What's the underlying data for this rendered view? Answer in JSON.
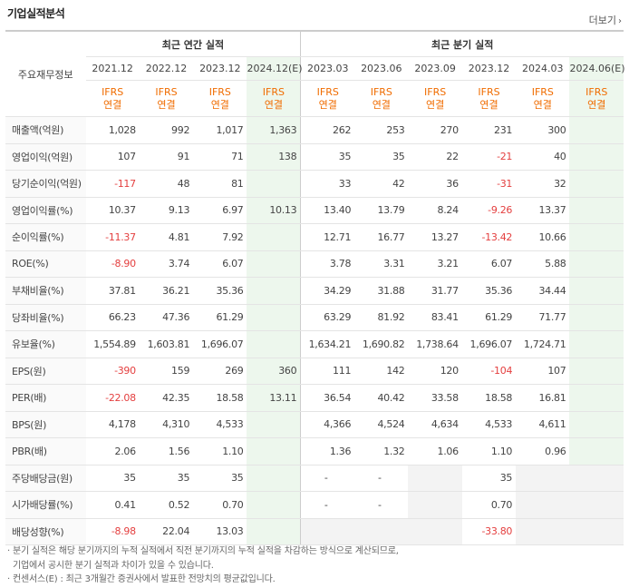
{
  "header": {
    "title": "기업실적분석",
    "more": "더보기"
  },
  "table": {
    "row_header": "주요재무정보",
    "group_annual": "최근 연간 실적",
    "group_quarter": "최근 분기 실적",
    "periods": [
      "2021.12",
      "2022.12",
      "2023.12",
      "2024.12(E)",
      "2023.03",
      "2023.06",
      "2023.09",
      "2023.12",
      "2024.03",
      "2024.06(E)"
    ],
    "basis_line1": "IFRS",
    "basis_line2": "연결",
    "rows": [
      {
        "label": "매출액(억원)",
        "values": [
          "1,028",
          "992",
          "1,017",
          "1,363",
          "262",
          "253",
          "270",
          "231",
          "300",
          ""
        ]
      },
      {
        "label": "영업이익(억원)",
        "values": [
          "107",
          "91",
          "71",
          "138",
          "35",
          "35",
          "22",
          "-21",
          "40",
          ""
        ]
      },
      {
        "label": "당기순이익(억원)",
        "values": [
          "-117",
          "48",
          "81",
          "",
          "33",
          "42",
          "36",
          "-31",
          "32",
          ""
        ]
      },
      {
        "label": "영업이익률(%)",
        "values": [
          "10.37",
          "9.13",
          "6.97",
          "10.13",
          "13.40",
          "13.79",
          "8.24",
          "-9.26",
          "13.37",
          ""
        ]
      },
      {
        "label": "순이익률(%)",
        "values": [
          "-11.37",
          "4.81",
          "7.92",
          "",
          "12.71",
          "16.77",
          "13.27",
          "-13.42",
          "10.66",
          ""
        ]
      },
      {
        "label": "ROE(%)",
        "values": [
          "-8.90",
          "3.74",
          "6.07",
          "",
          "3.78",
          "3.31",
          "3.21",
          "6.07",
          "5.88",
          ""
        ]
      },
      {
        "label": "부채비율(%)",
        "values": [
          "37.81",
          "36.21",
          "35.36",
          "",
          "34.29",
          "31.88",
          "31.77",
          "35.36",
          "34.44",
          ""
        ]
      },
      {
        "label": "당좌비율(%)",
        "values": [
          "66.23",
          "47.36",
          "61.29",
          "",
          "63.29",
          "81.92",
          "83.41",
          "61.29",
          "71.77",
          ""
        ]
      },
      {
        "label": "유보율(%)",
        "values": [
          "1,554.89",
          "1,603.81",
          "1,696.07",
          "",
          "1,634.21",
          "1,690.82",
          "1,738.64",
          "1,696.07",
          "1,724.71",
          ""
        ]
      },
      {
        "label": "EPS(원)",
        "values": [
          "-390",
          "159",
          "269",
          "360",
          "111",
          "142",
          "120",
          "-104",
          "107",
          ""
        ]
      },
      {
        "label": "PER(배)",
        "values": [
          "-22.08",
          "42.35",
          "18.58",
          "13.11",
          "36.54",
          "40.42",
          "33.58",
          "18.58",
          "16.81",
          ""
        ]
      },
      {
        "label": "BPS(원)",
        "values": [
          "4,178",
          "4,310",
          "4,533",
          "",
          "4,366",
          "4,524",
          "4,634",
          "4,533",
          "4,611",
          ""
        ]
      },
      {
        "label": "PBR(배)",
        "values": [
          "2.06",
          "1.56",
          "1.10",
          "",
          "1.36",
          "1.32",
          "1.06",
          "1.10",
          "0.96",
          ""
        ]
      },
      {
        "label": "주당배당금(원)",
        "values": [
          "35",
          "35",
          "35",
          "",
          "-",
          "-",
          "",
          "35",
          "",
          ""
        ]
      },
      {
        "label": "시가배당률(%)",
        "values": [
          "0.41",
          "0.52",
          "0.70",
          "",
          "-",
          "-",
          "",
          "0.70",
          "",
          ""
        ]
      },
      {
        "label": "배당성향(%)",
        "values": [
          "-8.98",
          "22.04",
          "13.03",
          "",
          "",
          "",
          "",
          "-33.80",
          "",
          ""
        ]
      }
    ]
  },
  "notes": [
    "· 분기 실적은 해당 분기까지의 누적 실적에서 직전 분기까지의 누적 실적을 차감하는 방식으로 계산되므로,",
    "  기업에서 공시한 분기 실적과 차이가 있을 수 있습니다.",
    "· 컨센서스(E) : 최근 3개월간 증권사에서 발표한 전망치의 평균값입니다."
  ]
}
